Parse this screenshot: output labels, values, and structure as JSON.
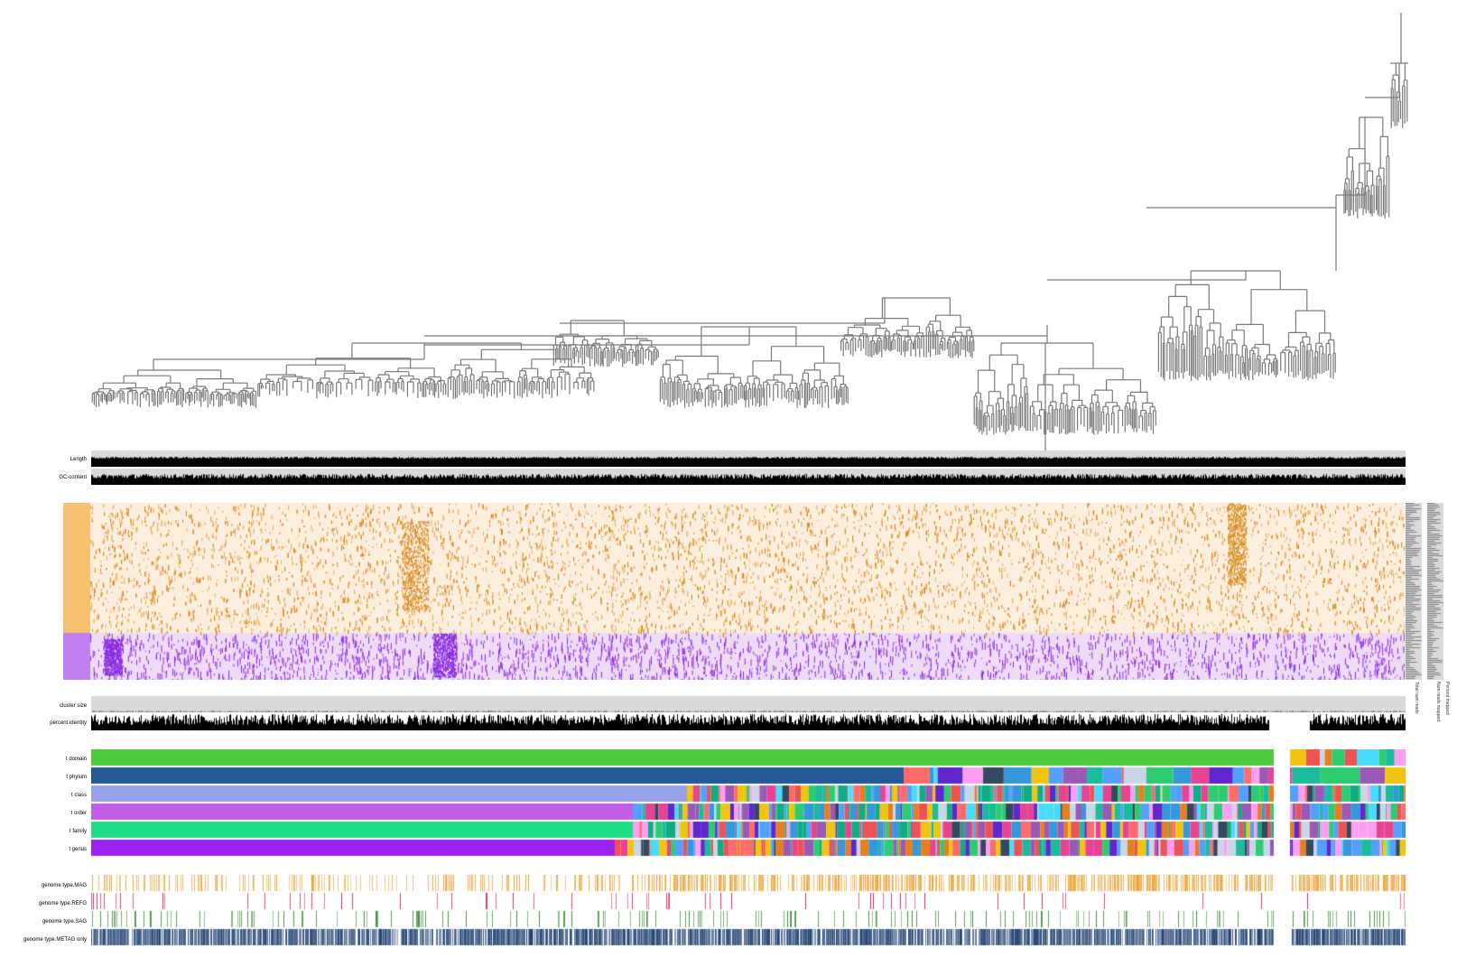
{
  "layers": {
    "length": "Length",
    "gc_content": "GC-content",
    "cluster_size": "cluster size",
    "percent_identity": "percent identity",
    "t_domain": "t domain",
    "t_phylum": "t phylum",
    "t_class": "t class",
    "t_order": "t order",
    "t_family": "t family",
    "t_genus": "t genus",
    "genome_type_mag": "genome type.MAG",
    "genome_type_refg": "genome type.REFG",
    "genome_type_sag": "genome type.SAG",
    "genome_type_metag_only": "genome type.METAG only"
  },
  "sample_bar_labels": {
    "total_num_reads": "Total num reads",
    "num_reads_mapped": "Num reads mapped",
    "percent_mapped": "Percent mapped"
  },
  "colors": {
    "background": "#ffffff",
    "tree_stroke": "#7a7a7a",
    "bar_background": "#d9d9d9",
    "bar_fill": "#000000",
    "heatmap_orange_bg": "#fbeedd",
    "heatmap_orange_mark": "#d9891c",
    "heatmap_purple_bg": "#eedcf7",
    "heatmap_purple_mark": "#8a2be2",
    "mag": "#f0a030",
    "refg": "#d02060",
    "sag": "#3a8a3a",
    "metag_only": "#1c3f6e",
    "domain_green": "#4ccc3c",
    "phylum_blue": "#235a96",
    "class_lavender": "#98a1ea",
    "order_magenta": "#c25be6",
    "family_green": "#1ede88",
    "genus_purple": "#9b22f0"
  }
}
